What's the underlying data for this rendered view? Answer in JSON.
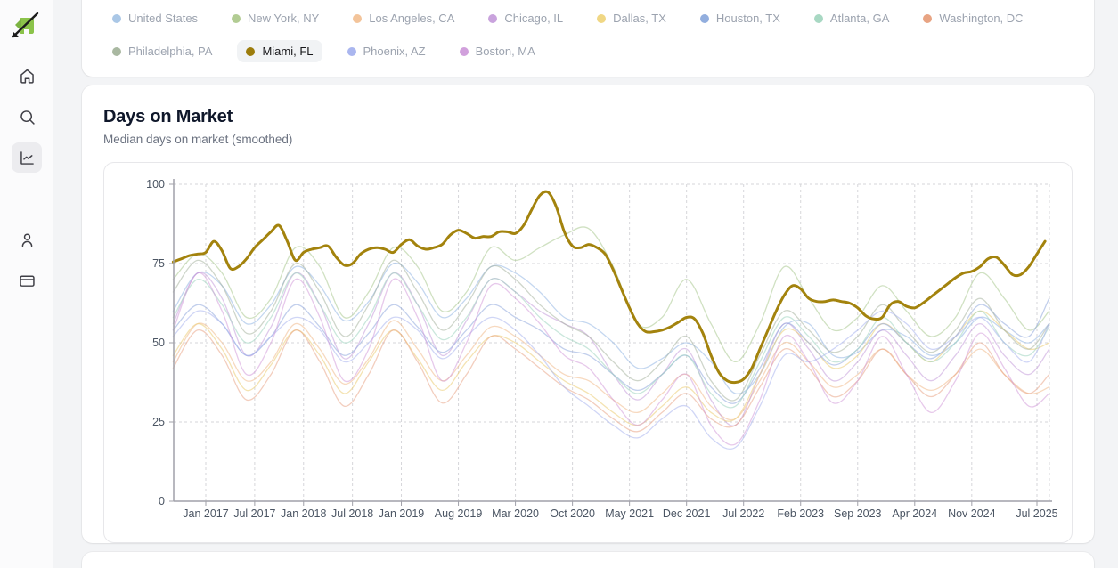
{
  "app": {
    "name": "real-estate-analytics"
  },
  "sidebar": {
    "logo": "realtrend-logo",
    "items": [
      {
        "icon": "home",
        "active": false
      },
      {
        "icon": "search",
        "active": false
      },
      {
        "icon": "line-chart",
        "active": true
      },
      {
        "icon": "user",
        "active": false
      },
      {
        "icon": "credit-card",
        "active": false
      }
    ]
  },
  "legend": {
    "items": [
      {
        "id": "united-states",
        "label": "United States",
        "dot_color": "#aac7e6",
        "selected": false
      },
      {
        "id": "new-york",
        "label": "New York, NY",
        "dot_color": "#b2cc93",
        "selected": false
      },
      {
        "id": "los-angeles",
        "label": "Los Angeles, CA",
        "dot_color": "#f3c49a",
        "selected": false
      },
      {
        "id": "chicago",
        "label": "Chicago, IL",
        "dot_color": "#c9a3dd",
        "selected": false
      },
      {
        "id": "dallas",
        "label": "Dallas, TX",
        "dot_color": "#f0d784",
        "selected": false
      },
      {
        "id": "houston",
        "label": "Houston, TX",
        "dot_color": "#92aede",
        "selected": false
      },
      {
        "id": "atlanta",
        "label": "Atlanta, GA",
        "dot_color": "#a8d8c3",
        "selected": false
      },
      {
        "id": "washington-dc",
        "label": "Washington, DC",
        "dot_color": "#e8a483",
        "selected": false
      },
      {
        "id": "philadelphia",
        "label": "Philadelphia, PA",
        "dot_color": "#a9b8a1",
        "selected": false
      },
      {
        "id": "miami",
        "label": "Miami, FL",
        "dot_color": "#9c7c0c",
        "selected": true
      },
      {
        "id": "phoenix",
        "label": "Phoenix, AZ",
        "dot_color": "#aab6ef",
        "selected": false
      },
      {
        "id": "boston",
        "label": "Boston, MA",
        "dot_color": "#d1a0dc",
        "selected": false
      }
    ]
  },
  "chart_card": {
    "title": "Days on Market",
    "subtitle": "Median days on market (smoothed)"
  },
  "chart_data": {
    "type": "line",
    "title": "Days on Market",
    "ylabel": "Median days on market",
    "grid": true,
    "y_axis": {
      "ticks": [
        0,
        25,
        50,
        75,
        100
      ],
      "range": [
        0,
        100
      ]
    },
    "x_axis": {
      "start_month": "Sep 2016",
      "end_month": "Aug 2025",
      "domain_months": [
        0,
        107.5
      ],
      "ticks": [
        {
          "label": "Jan 2017",
          "m": 4
        },
        {
          "label": "Jul 2017",
          "m": 10
        },
        {
          "label": "Jan 2018",
          "m": 16
        },
        {
          "label": "Jul 2018",
          "m": 22
        },
        {
          "label": "Jan 2019",
          "m": 28
        },
        {
          "label": "Aug 2019",
          "m": 35
        },
        {
          "label": "Mar 2020",
          "m": 42
        },
        {
          "label": "Oct 2020",
          "m": 49
        },
        {
          "label": "May 2021",
          "m": 56
        },
        {
          "label": "Dec 2021",
          "m": 63
        },
        {
          "label": "Jul 2022",
          "m": 70
        },
        {
          "label": "Feb 2023",
          "m": 77
        },
        {
          "label": "Sep 2023",
          "m": 84
        },
        {
          "label": "Apr 2024",
          "m": 91
        },
        {
          "label": "Nov 2024",
          "m": 98
        },
        {
          "label": "Jul 2025",
          "m": 106
        }
      ]
    },
    "series": [
      {
        "name": "United States",
        "color": "#93b7e4",
        "opacity": 0.55,
        "width": 1.3,
        "m0": 0,
        "m_step": 3,
        "values": [
          60,
          72,
          68,
          56,
          62,
          74,
          68,
          57,
          63,
          75,
          69,
          58,
          64,
          74,
          72,
          66,
          58,
          56,
          50,
          42,
          45,
          50,
          44,
          34,
          40,
          55,
          56,
          46,
          47,
          54,
          52,
          46,
          50,
          58,
          54,
          50,
          56
        ]
      },
      {
        "name": "New York, NY",
        "color": "#a9c98f",
        "opacity": 0.55,
        "width": 1.3,
        "m0": 0,
        "m_step": 3,
        "values": [
          70,
          78,
          72,
          58,
          64,
          80,
          74,
          58,
          66,
          80,
          74,
          60,
          66,
          80,
          76,
          80,
          84,
          86,
          74,
          56,
          58,
          70,
          56,
          44,
          56,
          74,
          64,
          54,
          58,
          68,
          60,
          52,
          58,
          72,
          64,
          54,
          60
        ]
      },
      {
        "name": "Los Angeles, CA",
        "color": "#f0b98a",
        "opacity": 0.55,
        "width": 1.3,
        "m0": 0,
        "m_step": 3,
        "values": [
          44,
          56,
          50,
          38,
          44,
          56,
          48,
          37,
          45,
          57,
          48,
          38,
          46,
          55,
          52,
          46,
          40,
          38,
          32,
          28,
          34,
          40,
          30,
          26,
          38,
          50,
          44,
          36,
          40,
          48,
          40,
          35,
          40,
          48,
          40,
          34,
          36
        ]
      },
      {
        "name": "Chicago, IL",
        "color": "#bf94d8",
        "opacity": 0.5,
        "width": 1.3,
        "m0": 0,
        "m_step": 3,
        "values": [
          56,
          72,
          64,
          46,
          55,
          72,
          62,
          45,
          56,
          72,
          62,
          46,
          57,
          70,
          66,
          60,
          56,
          52,
          40,
          32,
          40,
          48,
          32,
          24,
          40,
          56,
          48,
          38,
          44,
          54,
          46,
          38,
          46,
          56,
          46,
          40,
          48
        ]
      },
      {
        "name": "Dallas, TX",
        "color": "#ecd07f",
        "opacity": 0.6,
        "width": 1.3,
        "m0": 0,
        "m_step": 3,
        "values": [
          46,
          56,
          48,
          35,
          43,
          54,
          46,
          34,
          44,
          54,
          45,
          35,
          44,
          52,
          50,
          44,
          38,
          34,
          28,
          24,
          30,
          36,
          28,
          26,
          40,
          54,
          50,
          42,
          46,
          56,
          50,
          44,
          52,
          60,
          54,
          48,
          50
        ]
      },
      {
        "name": "Houston, TX",
        "color": "#8fa8dc",
        "opacity": 0.55,
        "width": 1.3,
        "m0": 0,
        "m_step": 3,
        "values": [
          54,
          62,
          56,
          46,
          52,
          62,
          55,
          46,
          53,
          62,
          55,
          47,
          54,
          62,
          58,
          54,
          48,
          46,
          40,
          35,
          40,
          46,
          36,
          31,
          42,
          56,
          50,
          43,
          48,
          56,
          50,
          45,
          52,
          62,
          56,
          52,
          64
        ]
      },
      {
        "name": "Atlanta, GA",
        "color": "#9fd4bf",
        "opacity": 0.55,
        "width": 1.3,
        "m0": 0,
        "m_step": 3,
        "values": [
          58,
          70,
          62,
          50,
          58,
          72,
          62,
          50,
          58,
          72,
          62,
          51,
          58,
          70,
          66,
          58,
          52,
          48,
          40,
          34,
          40,
          46,
          34,
          30,
          44,
          58,
          52,
          44,
          48,
          58,
          50,
          44,
          50,
          60,
          50,
          46,
          55
        ]
      },
      {
        "name": "Washington, DC",
        "color": "#e89e7e",
        "opacity": 0.5,
        "width": 1.3,
        "m0": 0,
        "m_step": 3,
        "values": [
          42,
          54,
          46,
          32,
          40,
          54,
          44,
          30,
          40,
          54,
          44,
          31,
          40,
          52,
          48,
          42,
          36,
          32,
          26,
          22,
          28,
          34,
          26,
          24,
          36,
          48,
          42,
          33,
          38,
          48,
          40,
          33,
          40,
          50,
          40,
          34,
          40
        ]
      },
      {
        "name": "Philadelphia, PA",
        "color": "#9fae98",
        "opacity": 0.5,
        "width": 1.3,
        "m0": 0,
        "m_step": 3,
        "values": [
          66,
          76,
          68,
          53,
          60,
          75,
          66,
          52,
          62,
          76,
          66,
          54,
          62,
          74,
          70,
          62,
          56,
          52,
          44,
          38,
          44,
          52,
          38,
          32,
          46,
          60,
          54,
          47,
          52,
          62,
          54,
          47,
          54,
          64,
          54,
          48,
          56
        ]
      },
      {
        "name": "Phoenix, AZ",
        "color": "#a9b4ee",
        "opacity": 0.55,
        "width": 1.3,
        "m0": 0,
        "m_step": 3,
        "values": [
          52,
          60,
          56,
          46,
          52,
          58,
          54,
          44,
          50,
          58,
          54,
          45,
          52,
          58,
          54,
          46,
          36,
          30,
          24,
          20,
          26,
          30,
          20,
          17,
          30,
          46,
          44,
          48,
          54,
          60,
          56,
          48,
          52,
          58,
          50,
          44,
          56
        ]
      },
      {
        "name": "Boston, MA",
        "color": "#cf93d8",
        "opacity": 0.5,
        "width": 1.3,
        "m0": 0,
        "m_step": 3,
        "values": [
          54,
          72,
          60,
          40,
          50,
          70,
          58,
          38,
          48,
          70,
          58,
          38,
          50,
          68,
          64,
          56,
          46,
          42,
          32,
          24,
          32,
          40,
          24,
          18,
          32,
          52,
          44,
          31,
          38,
          52,
          40,
          28,
          38,
          53,
          42,
          30,
          34
        ]
      },
      {
        "name": "Miami, FL",
        "color": "#a3830d",
        "opacity": 1,
        "width": 3,
        "m0": 0,
        "m_step": 1,
        "values": [
          75.5,
          76.5,
          77.5,
          78,
          78.5,
          82,
          79,
          73.5,
          74,
          76.5,
          80,
          82.5,
          85,
          87,
          82,
          76,
          78.5,
          79.5,
          80,
          80.5,
          77,
          74.5,
          75,
          78,
          79.5,
          80,
          79.5,
          78.5,
          81,
          82.5,
          80.5,
          79.5,
          80,
          81,
          84,
          85.5,
          84.5,
          83,
          83.5,
          83.5,
          85,
          85,
          84.5,
          87,
          92,
          96.5,
          97.5,
          93,
          85,
          80.5,
          80,
          81,
          80,
          78,
          73,
          67,
          61,
          56,
          53.5,
          53.5,
          54,
          55,
          56.5,
          58,
          57.5,
          53,
          46,
          40.5,
          38,
          37.5,
          38.5,
          42,
          48,
          54,
          60,
          65,
          68,
          67,
          64,
          63,
          63,
          63.5,
          63,
          62.5,
          61,
          58.5,
          57.5,
          58,
          62,
          63,
          61.5,
          61,
          62.5,
          64.5,
          66.5,
          68.5,
          70.5,
          72,
          72.5,
          74,
          76.5,
          77,
          74.5,
          71.5,
          71.5,
          74,
          78,
          82
        ]
      }
    ],
    "style": {
      "grid_color": "#d6d6da",
      "axis_color": "#a1a1aa",
      "tick_label_color": "#4b5563"
    }
  }
}
